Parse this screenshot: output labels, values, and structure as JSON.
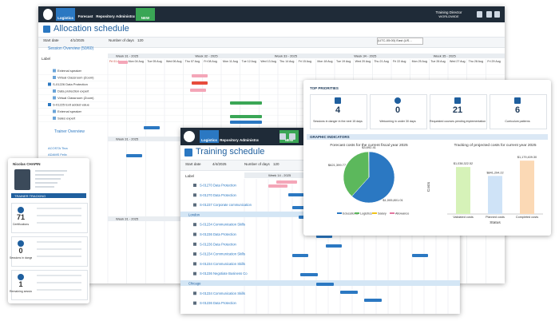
{
  "allocation": {
    "nav": [
      "Logistics",
      "Forecast",
      "Repository",
      "Administration",
      "NEW"
    ],
    "user": "Training Director",
    "user_scope": "WORLDWIDE",
    "title": "Allocation schedule",
    "start_date_label": "Start date",
    "start_date": "4/1/2025",
    "days_label": "Number of days",
    "days": "120",
    "timezone": "(UTC-05:00) East (US...",
    "session_overview": "Session Overview (50/60)",
    "label_header": "Label",
    "weeks": [
      "Week 31 - 2025",
      "Week 32 - 2025",
      "Week 33 - 2025",
      "Week 34 - 2025",
      "Week 35 - 2025"
    ],
    "days_list": [
      "Fri 01 Aug",
      "Mon 04 Aug",
      "Tue 05 Aug",
      "Wed 06 Aug",
      "Thu 07 Aug",
      "Fri 08 Aug",
      "Mon 11 Aug",
      "Tue 12 Aug",
      "Wed 13 Aug",
      "Thu 14 Aug",
      "Fri 15 Aug",
      "Mon 18 Aug",
      "Tue 19 Aug",
      "Wed 20 Aug",
      "Thu 21 Aug",
      "Fri 22 Aug",
      "Mon 25 Aug",
      "Tue 26 Aug",
      "Wed 27 Aug",
      "Thu 28 Aug",
      "Fri 29 Aug"
    ],
    "rows": [
      "External speaker",
      "Virtual Classroom (Zoom)",
      "S-01226 Data Protection",
      "Data protection expert",
      "Virtual Classroom (Zoom)",
      "S-01225 Exit added value",
      "External speaker",
      "Sales expert"
    ],
    "trainer_overview": "Trainer Overview",
    "trainers": [
      "ACOSTA Tina",
      "ADAMS Felix"
    ]
  },
  "profile": {
    "name": "Nicolas CHAPIN",
    "section": "TRAINER TRACKING",
    "stats": [
      {
        "value": "71",
        "label": "Certifications"
      },
      {
        "value": "0",
        "label": "Sessions in danger"
      },
      {
        "value": "1",
        "label": "Remaining sessions"
      }
    ]
  },
  "training": {
    "nav": [
      "Logistics",
      "Repository",
      "Administration",
      "NEW"
    ],
    "title": "Training schedule",
    "start_date_label": "Start date",
    "start_date": "4/4/2025",
    "days_label": "Number of days",
    "days": "120",
    "label_header": "Label",
    "weeks": [
      "Week 14 - 2025",
      "Week 15 - 2025"
    ],
    "rows": [
      "S-01270 Data Protection",
      "S-01270 Data Protection",
      "S-01237 Corporate communication",
      "London",
      "S-01234 Communication Skills",
      "S-01236 Data Protection",
      "S-01236 Data Protection",
      "S-01234 Communication Skills",
      "S-01234 Communication Skills",
      "S-01236 Negotiate Business Co",
      "Chicago",
      "S-01234 Communication Skills",
      "S-01236 Data Protection"
    ]
  },
  "dashboard": {
    "priorities_title": "TOP PRIORITIES",
    "cards": [
      {
        "value": "4",
        "label": "Sessions in danger in the next 15 days"
      },
      {
        "value": "0",
        "label": "Welcoming in under 30 days"
      },
      {
        "value": "21",
        "label": "Requested courses pending implementation"
      },
      {
        "value": "6",
        "label": "Curriculum patterns"
      }
    ],
    "indicators_title": "GRAPHIC INDICATORS",
    "pie": {
      "type": "pie",
      "title": "Forecast costs for the current fiscal year 2025",
      "categories": [
        "Educational",
        "Logistics",
        "Salary",
        "Allowance"
      ],
      "values": [
        1005801.01,
        621399.77,
        3692.41,
        null
      ],
      "value_labels": [
        "$1,005,801.01",
        "$621,399.77",
        "$3,692.41",
        null
      ],
      "colors": [
        "#2b78c2",
        "#5cb85c",
        "#f0c419",
        "#e377a0"
      ]
    },
    "bar": {
      "type": "bar",
      "title": "Tracking of projected costs for current year 2025",
      "categories": [
        "Validated costs",
        "Planned costs",
        "Completed costs"
      ],
      "values": [
        1038322.52,
        841294.22,
        1179409.3
      ],
      "value_labels": [
        "$1,038,322.52",
        "$841,294.22",
        "$1,179,409.30"
      ],
      "colors": [
        "#d6f2b8",
        "#cfe3f7",
        "#fbd9b5"
      ],
      "ylim": [
        0,
        1200000
      ],
      "x_label": "Status",
      "y_label": "Costs"
    }
  }
}
